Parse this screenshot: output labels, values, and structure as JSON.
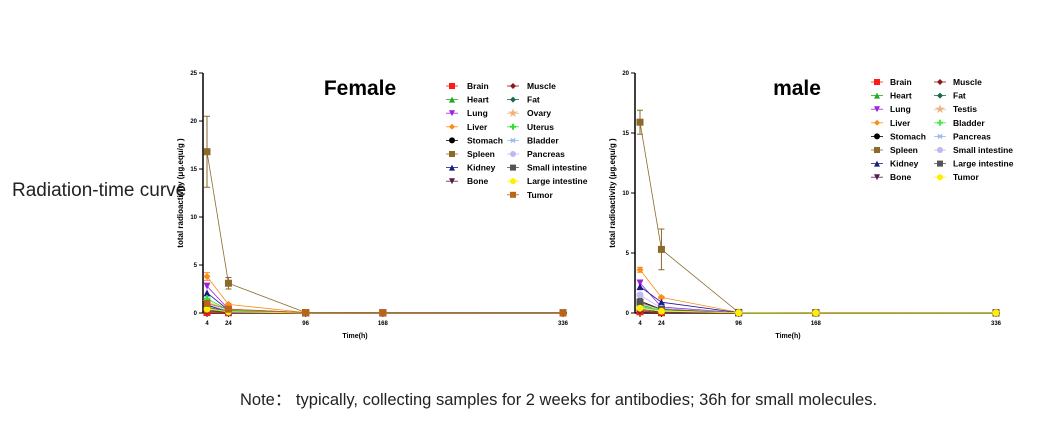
{
  "side_label": "Radiation-time curve",
  "note": "Note：  typically, collecting samples for 2 weeks for antibodies; 36h for small molecules.",
  "chart_data": [
    {
      "type": "line",
      "title": "Female",
      "xlabel": "Time(h)",
      "ylabel": "total radioactivity (μg.equ/g )",
      "x": [
        4,
        24,
        96,
        168,
        336
      ],
      "xticks": [
        4,
        24,
        96,
        168,
        336
      ],
      "ylim": [
        0,
        25
      ],
      "yticks": [
        0,
        5,
        10,
        15,
        20,
        25
      ],
      "grid": false,
      "legend": "top-right",
      "series": [
        {
          "name": "Brain",
          "color": "#ff1a1a",
          "marker": "square",
          "values": [
            0.05,
            0.02,
            0.01,
            0.01,
            0.01
          ]
        },
        {
          "name": "Heart",
          "color": "#22aa22",
          "marker": "triangle",
          "values": [
            0.6,
            0.15,
            0.02,
            0.01,
            0.01
          ]
        },
        {
          "name": "Lung",
          "color": "#9a22e0",
          "marker": "triangle-down",
          "values": [
            2.8,
            0.4,
            0.03,
            0.01,
            0.01
          ]
        },
        {
          "name": "Liver",
          "color": "#ff8c1a",
          "marker": "diamond",
          "values": [
            3.8,
            0.9,
            0.05,
            0.02,
            0.01
          ],
          "error": [
            0.4,
            0.1,
            0,
            0,
            0
          ]
        },
        {
          "name": "Stomach",
          "color": "#000000",
          "marker": "circle",
          "values": [
            0.8,
            0.2,
            0.02,
            0.01,
            0.01
          ]
        },
        {
          "name": "Spleen",
          "color": "#8c6a2a",
          "marker": "square",
          "values": [
            16.8,
            3.1,
            0.05,
            0.02,
            0.01
          ],
          "error": [
            3.7,
            0.6,
            0,
            0,
            0
          ]
        },
        {
          "name": "Kidney",
          "color": "#1a1a8c",
          "marker": "triangle",
          "values": [
            2.1,
            0.3,
            0.03,
            0.01,
            0.01
          ]
        },
        {
          "name": "Bone",
          "color": "#5a1a4a",
          "marker": "triangle-down",
          "values": [
            0.4,
            0.1,
            0.02,
            0.01,
            0.01
          ]
        },
        {
          "name": "Muscle",
          "color": "#8b1a1a",
          "marker": "diamond",
          "values": [
            0.2,
            0.05,
            0.01,
            0.01,
            0.01
          ]
        },
        {
          "name": "Fat",
          "color": "#1a6a4a",
          "marker": "diamond",
          "values": [
            0.3,
            0.08,
            0.01,
            0.01,
            0.01
          ]
        },
        {
          "name": "Ovary",
          "color": "#f0b080",
          "marker": "star",
          "values": [
            1.2,
            0.3,
            0.02,
            0.01,
            0.01
          ]
        },
        {
          "name": "Uterus",
          "color": "#33dd33",
          "marker": "cross",
          "values": [
            1.5,
            0.3,
            0.02,
            0.01,
            0.01
          ]
        },
        {
          "name": "Bladder",
          "color": "#99bbee",
          "marker": "asterisk",
          "values": [
            0.9,
            0.2,
            0.02,
            0.01,
            0.01
          ]
        },
        {
          "name": "Pancreas",
          "color": "#c0b8f0",
          "marker": "circle",
          "values": [
            0.5,
            0.1,
            0.02,
            0.01,
            0.01
          ]
        },
        {
          "name": "Small intestine",
          "color": "#555555",
          "marker": "square",
          "values": [
            0.6,
            0.2,
            0.02,
            0.01,
            0.01
          ]
        },
        {
          "name": "Large intestine",
          "color": "#ffee00",
          "marker": "circle",
          "values": [
            0.4,
            0.15,
            0.02,
            0.01,
            0.01
          ]
        },
        {
          "name": "Tumor",
          "color": "#b8651a",
          "marker": "square",
          "values": [
            1.0,
            0.4,
            0.03,
            0.01,
            0.01
          ]
        }
      ]
    },
    {
      "type": "line",
      "title": "male",
      "xlabel": "Time(h)",
      "ylabel": "total radioactivity (μg.equ/g )",
      "x": [
        4,
        24,
        96,
        168,
        336
      ],
      "xticks": [
        4,
        24,
        96,
        168,
        336
      ],
      "ylim": [
        0,
        20
      ],
      "yticks": [
        0,
        5,
        10,
        15,
        20
      ],
      "grid": false,
      "legend": "top-right",
      "series": [
        {
          "name": "Brain",
          "color": "#ff1a1a",
          "marker": "square",
          "values": [
            0.1,
            0.02,
            0.01,
            0.01,
            0.01
          ]
        },
        {
          "name": "Heart",
          "color": "#22aa22",
          "marker": "triangle",
          "values": [
            0.7,
            0.2,
            0.02,
            0.01,
            0.01
          ]
        },
        {
          "name": "Lung",
          "color": "#9a22e0",
          "marker": "triangle-down",
          "values": [
            2.5,
            0.5,
            0.03,
            0.01,
            0.01
          ]
        },
        {
          "name": "Liver",
          "color": "#ff8c1a",
          "marker": "diamond",
          "values": [
            3.6,
            1.3,
            0.05,
            0.02,
            0.01
          ],
          "error": [
            0.2,
            0.1,
            0,
            0,
            0
          ]
        },
        {
          "name": "Stomach",
          "color": "#000000",
          "marker": "circle",
          "values": [
            1.0,
            0.3,
            0.02,
            0.01,
            0.01
          ]
        },
        {
          "name": "Spleen",
          "color": "#8c6a2a",
          "marker": "square",
          "values": [
            15.9,
            5.3,
            0.05,
            0.02,
            0.01
          ],
          "error": [
            1.0,
            1.7,
            0,
            0,
            0
          ]
        },
        {
          "name": "Kidney",
          "color": "#1a1a8c",
          "marker": "triangle",
          "values": [
            2.2,
            0.9,
            0.03,
            0.01,
            0.01
          ]
        },
        {
          "name": "Bone",
          "color": "#5a1a4a",
          "marker": "triangle-down",
          "values": [
            0.5,
            0.2,
            0.02,
            0.01,
            0.01
          ]
        },
        {
          "name": "Muscle",
          "color": "#8b1a1a",
          "marker": "diamond",
          "values": [
            0.2,
            0.05,
            0.01,
            0.01,
            0.01
          ]
        },
        {
          "name": "Fat",
          "color": "#1a6a4a",
          "marker": "diamond",
          "values": [
            0.3,
            0.1,
            0.01,
            0.01,
            0.01
          ]
        },
        {
          "name": "Testis",
          "color": "#f0b080",
          "marker": "star",
          "values": [
            0.8,
            0.3,
            0.02,
            0.01,
            0.01
          ]
        },
        {
          "name": "Bladder",
          "color": "#44ee44",
          "marker": "cross",
          "values": [
            0.6,
            0.2,
            0.02,
            0.01,
            0.01
          ]
        },
        {
          "name": "Pancreas",
          "color": "#99bbee",
          "marker": "asterisk",
          "values": [
            0.5,
            0.15,
            0.02,
            0.01,
            0.01
          ]
        },
        {
          "name": "Small intestine",
          "color": "#c0b8f0",
          "marker": "circle",
          "values": [
            1.5,
            0.4,
            0.02,
            0.01,
            0.01
          ]
        },
        {
          "name": "Large intestine",
          "color": "#555555",
          "marker": "square",
          "values": [
            0.9,
            0.3,
            0.02,
            0.01,
            0.01
          ]
        },
        {
          "name": "Tumor",
          "color": "#ffee00",
          "marker": "circle",
          "values": [
            0.4,
            0.15,
            0.02,
            0.01,
            0.01
          ]
        }
      ]
    }
  ]
}
